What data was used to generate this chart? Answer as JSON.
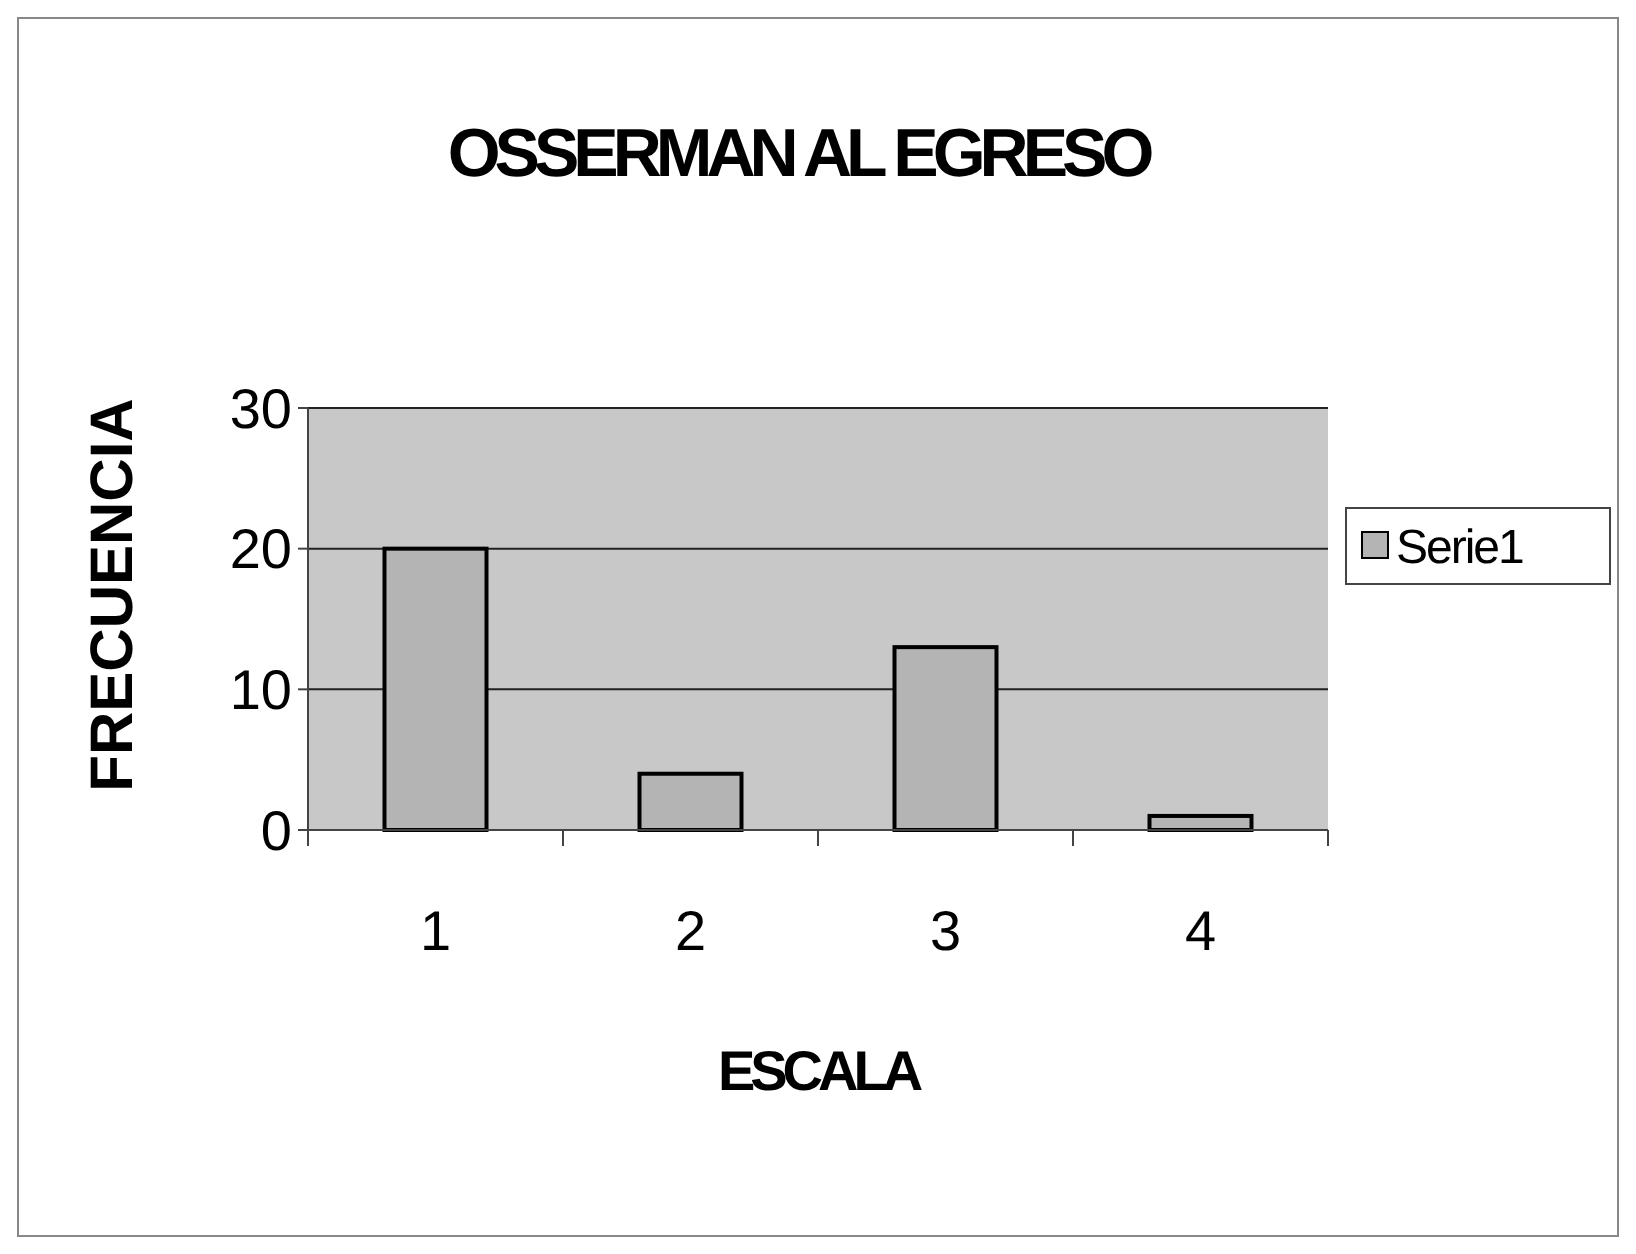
{
  "chart_data": {
    "type": "bar",
    "title": "OSSERMAN AL EGRESO",
    "xlabel": "ESCALA",
    "ylabel": "FRECUENCIA",
    "categories": [
      "1",
      "2",
      "3",
      "4"
    ],
    "series": [
      {
        "name": "Serie1",
        "color": "#b4b4b4",
        "values": [
          20,
          4,
          13,
          1
        ]
      }
    ],
    "ylim": [
      0,
      30
    ],
    "yticks": [
      0,
      10,
      20,
      30
    ],
    "grid": "y",
    "legend": "right"
  }
}
